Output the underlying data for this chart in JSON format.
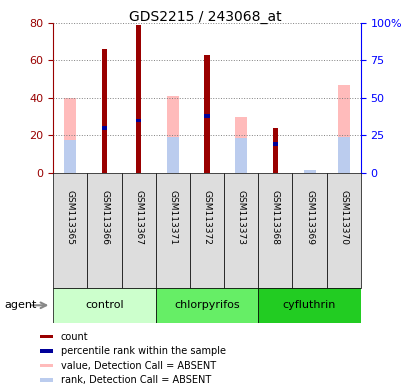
{
  "title": "GDS2215 / 243068_at",
  "samples": [
    "GSM113365",
    "GSM113366",
    "GSM113367",
    "GSM113371",
    "GSM113372",
    "GSM113373",
    "GSM113368",
    "GSM113369",
    "GSM113370"
  ],
  "groups": [
    {
      "label": "control",
      "start": 0,
      "end": 3,
      "color": "#AAFFAA"
    },
    {
      "label": "chlorpyrifos",
      "start": 3,
      "end": 6,
      "color": "#55EE55"
    },
    {
      "label": "cyfluthrin",
      "start": 6,
      "end": 9,
      "color": "#22DD22"
    }
  ],
  "count_values": [
    0,
    66,
    79,
    0,
    63,
    0,
    24,
    0,
    0
  ],
  "count_color": "#990000",
  "rank_values": [
    0,
    30,
    35,
    0,
    38,
    0,
    19,
    0,
    0
  ],
  "rank_color": "#000099",
  "absent_value_values": [
    40,
    0,
    0,
    41,
    0,
    30,
    0,
    0,
    47
  ],
  "absent_value_color": "#FFBBBB",
  "absent_rank_values": [
    22,
    0,
    0,
    24,
    0,
    23,
    0,
    2,
    24
  ],
  "absent_rank_color": "#BBCCEE",
  "ylim_left": [
    0,
    80
  ],
  "ylim_right": [
    0,
    100
  ],
  "yticks_left": [
    0,
    20,
    40,
    60,
    80
  ],
  "yticks_right": [
    0,
    25,
    50,
    75,
    100
  ],
  "agent_label": "agent",
  "legend_items": [
    {
      "color": "#990000",
      "label": "count"
    },
    {
      "color": "#000099",
      "label": "percentile rank within the sample"
    },
    {
      "color": "#FFBBBB",
      "label": "value, Detection Call = ABSENT"
    },
    {
      "color": "#BBCCEE",
      "label": "rank, Detection Call = ABSENT"
    }
  ]
}
